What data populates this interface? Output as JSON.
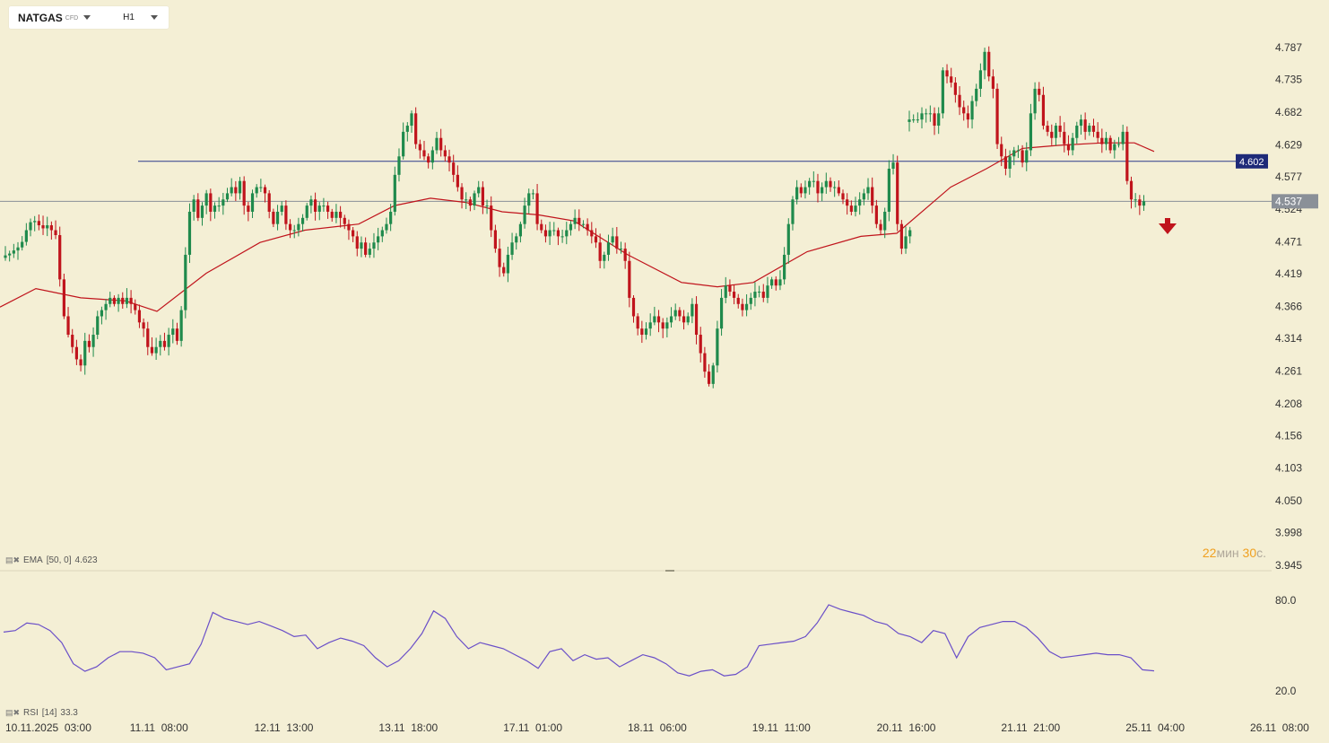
{
  "toolbar": {
    "symbol": "NATGAS",
    "symbol_type": "CFD",
    "timeframe": "H1"
  },
  "countdown": {
    "minutes": "22",
    "min_unit": "мин",
    "seconds": "30",
    "sec_unit": "с."
  },
  "indicators": {
    "ema_label": "EMA",
    "ema_params": "[50, 0]",
    "ema_value": "4.623",
    "rsi_label": "RSI",
    "rsi_params": "[14]",
    "rsi_value": "33.3"
  },
  "colors": {
    "background": "#f4efd5",
    "bull": "#1f8a4c",
    "bear": "#c0141c",
    "ema": "#c0141c",
    "rsi": "#6a4fc8",
    "hline": "#2c3a8c",
    "current_line": "#8a9098"
  },
  "chart_data": [
    {
      "type": "candlestick",
      "title": "NATGAS H1",
      "y_ticks": [
        "4.787",
        "4.735",
        "4.682",
        "4.629",
        "4.577",
        "4.524",
        "4.471",
        "4.419",
        "4.366",
        "4.314",
        "4.261",
        "4.208",
        "4.156",
        "4.103",
        "4.050",
        "3.998",
        "3.945"
      ],
      "ylim": [
        3.945,
        4.787
      ],
      "x_ticks": [
        "10.11.2025  03:00",
        "11.11  08:00",
        "12.11  13:00",
        "13.11  18:00",
        "17.11  01:00",
        "18.11  06:00",
        "19.11  11:00",
        "20.11  16:00",
        "21.11  21:00",
        "25.11  04:00",
        "26.11  08:00"
      ],
      "horizontal_line": {
        "value": 4.602,
        "label": "4.602"
      },
      "current_price": {
        "value": 4.537,
        "label": "4.537"
      },
      "ema_control_points": [
        [
          0,
          4.365
        ],
        [
          40,
          4.395
        ],
        [
          90,
          4.38
        ],
        [
          140,
          4.375
        ],
        [
          175,
          4.358
        ],
        [
          230,
          4.42
        ],
        [
          290,
          4.47
        ],
        [
          340,
          4.49
        ],
        [
          400,
          4.5
        ],
        [
          440,
          4.53
        ],
        [
          480,
          4.542
        ],
        [
          520,
          4.535
        ],
        [
          560,
          4.52
        ],
        [
          600,
          4.515
        ],
        [
          640,
          4.505
        ],
        [
          700,
          4.45
        ],
        [
          760,
          4.405
        ],
        [
          800,
          4.398
        ],
        [
          840,
          4.405
        ],
        [
          900,
          4.455
        ],
        [
          960,
          4.48
        ],
        [
          1000,
          4.485
        ],
        [
          1060,
          4.56
        ],
        [
          1100,
          4.59
        ],
        [
          1140,
          4.623
        ],
        [
          1180,
          4.628
        ],
        [
          1230,
          4.632
        ],
        [
          1265,
          4.632
        ],
        [
          1287,
          4.618
        ]
      ],
      "segments": [
        {
          "start_x": 6,
          "step": 4.67,
          "closes": [
            4.449,
            4.452,
            4.457,
            4.462,
            4.471,
            4.49,
            4.503,
            4.505,
            4.498,
            4.493,
            4.498,
            4.49,
            4.482,
            4.41,
            4.35,
            4.32,
            4.3,
            4.28,
            4.27,
            4.31,
            4.3,
            4.32,
            4.35,
            4.36,
            4.37,
            4.38,
            4.37,
            4.38,
            4.37,
            4.38,
            4.37,
            4.36,
            4.34,
            4.33,
            4.3,
            4.29,
            4.3,
            4.31,
            4.3,
            4.32,
            4.33,
            4.31,
            4.36,
            4.45,
            4.52,
            4.54,
            4.51,
            4.53,
            4.55,
            4.52,
            4.53,
            4.53,
            4.54,
            4.55,
            4.56,
            4.55,
            4.57,
            4.53,
            4.52,
            4.55,
            4.56,
            4.56,
            4.55,
            4.52,
            4.5,
            4.52,
            4.53,
            4.5,
            4.49,
            4.49,
            4.5,
            4.51,
            4.53,
            4.54,
            4.52,
            4.53,
            4.53,
            4.52,
            4.51,
            4.52,
            4.51,
            4.5,
            4.49,
            4.48,
            4.46,
            4.47,
            4.45,
            4.46,
            4.47,
            4.48,
            4.49,
            4.5,
            4.52,
            4.58,
            4.61,
            4.65,
            4.66,
            4.68,
            4.63,
            4.62,
            4.61,
            4.6,
            4.62,
            4.64,
            4.62,
            4.61,
            4.6,
            4.58,
            4.56,
            4.54,
            4.54,
            4.53,
            4.55,
            4.56,
            4.53,
            4.53,
            4.49,
            4.46,
            4.43,
            4.42,
            4.45,
            4.47,
            4.48,
            4.5,
            4.53,
            4.55,
            4.55,
            4.5,
            4.49,
            4.48,
            4.49,
            4.49,
            4.48,
            4.48,
            4.49,
            4.5,
            4.51,
            4.5,
            4.5,
            4.49,
            4.48,
            4.47,
            4.44,
            4.45,
            4.47,
            4.48,
            4.46,
            4.46,
            4.44,
            4.38,
            4.35,
            4.33,
            4.32,
            4.33,
            4.34,
            4.35,
            4.34,
            4.33,
            4.34,
            4.35,
            4.36,
            4.35,
            4.34,
            4.35,
            4.37,
            4.32,
            4.29,
            4.26,
            4.24,
            4.27,
            4.33,
            4.38,
            4.4,
            4.39,
            4.38,
            4.37,
            4.36,
            4.37,
            4.38,
            4.39,
            4.39,
            4.38,
            4.4,
            4.41,
            4.4,
            4.41,
            4.45,
            4.5,
            4.54,
            4.56,
            4.55,
            4.56,
            4.57,
            4.57,
            4.55,
            4.56,
            4.57,
            4.56,
            4.56,
            4.55,
            4.54,
            4.53,
            4.52,
            4.53,
            4.54,
            4.55,
            4.56,
            4.53,
            4.5,
            4.49,
            4.52,
            4.59,
            4.6,
            4.5,
            4.46,
            4.48,
            4.49
          ]
        },
        {
          "start_x": 1014,
          "step": 4.67,
          "closes": [
            4.67,
            4.67,
            4.67,
            4.68,
            4.68,
            4.68,
            4.66,
            4.68,
            4.75,
            4.74,
            4.73,
            4.71,
            4.69,
            4.68,
            4.67,
            4.7,
            4.72,
            4.75,
            4.78,
            4.74,
            4.72,
            4.63,
            4.61,
            4.59,
            4.61,
            4.62,
            4.62,
            4.6,
            4.62,
            4.68,
            4.72,
            4.71,
            4.66,
            4.65,
            4.64,
            4.66,
            4.65,
            4.63,
            4.62,
            4.64,
            4.66,
            4.67,
            4.65,
            4.66,
            4.65,
            4.64,
            4.63,
            4.64,
            4.62,
            4.63,
            4.63,
            4.65,
            4.57,
            4.54,
            4.54,
            4.53,
            4.537
          ]
        }
      ]
    },
    {
      "type": "line",
      "title": "RSI [14]",
      "y_ticks": [
        "80.0",
        "20.0"
      ],
      "ylim": [
        20,
        80
      ],
      "x_range": [
        4,
        1287
      ],
      "values": [
        59,
        60,
        65,
        64,
        60,
        52,
        38,
        33,
        36,
        42,
        46,
        46,
        45,
        42,
        34,
        36,
        38,
        51,
        72,
        68,
        66,
        64,
        66,
        63,
        60,
        56,
        57,
        48,
        52,
        55,
        53,
        50,
        42,
        36,
        40,
        48,
        58,
        73,
        68,
        56,
        48,
        52,
        50,
        48,
        44,
        40,
        35,
        46,
        48,
        40,
        44,
        41,
        42,
        36,
        40,
        44,
        42,
        38,
        32,
        30,
        33,
        34,
        30,
        31,
        36,
        50,
        51,
        52,
        53,
        56,
        65,
        77,
        74,
        72,
        70,
        66,
        64,
        58,
        56,
        52,
        60,
        58,
        42,
        56,
        62,
        64,
        66,
        66,
        62,
        55,
        46,
        42,
        43,
        44,
        45,
        44,
        44,
        42,
        34,
        33.3
      ]
    }
  ]
}
